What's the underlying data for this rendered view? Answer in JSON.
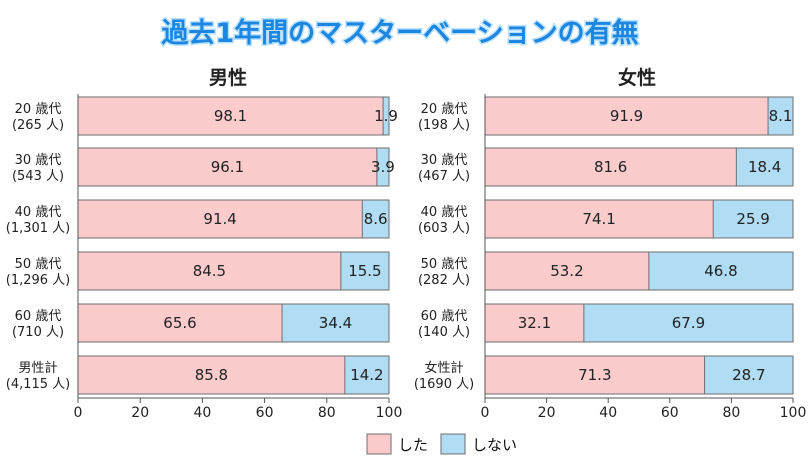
{
  "title": "過去1年間のマスターベーションの有無",
  "legend": {
    "did": "した",
    "did_not": "しない",
    "position": "bottom-center"
  },
  "colors": {
    "did": "#fccccc",
    "did_not": "#b0dcf4",
    "title_fill": "#1d86e0",
    "title_stroke": "#b8e0ff",
    "bar_border": "#6e6e6e"
  },
  "chart_data": [
    {
      "type": "bar",
      "orientation": "horizontal",
      "stacked": true,
      "title": "男性",
      "categories": [
        [
          "20 歳代",
          "(265 人)"
        ],
        [
          "30 歳代",
          "(543 人)"
        ],
        [
          "40 歳代",
          "(1,301 人)"
        ],
        [
          "50 歳代",
          "(1,296 人)"
        ],
        [
          "60 歳代",
          "(710 人)"
        ],
        [
          "男性計",
          "(4,115 人)"
        ]
      ],
      "series": [
        {
          "name": "した",
          "values": [
            98.1,
            96.1,
            91.4,
            84.5,
            65.6,
            85.8
          ],
          "labels": [
            "98.1",
            "96.1",
            "91.4",
            "84.5",
            "65.6",
            "85.8"
          ]
        },
        {
          "name": "しない",
          "values": [
            1.9,
            3.9,
            8.6,
            15.5,
            34.4,
            14.2
          ],
          "labels": [
            "1.9",
            "3.9",
            "8.6",
            "15.5",
            "34.4",
            "14.2"
          ]
        }
      ],
      "xlim": [
        0,
        100
      ],
      "xticks": [
        0,
        20,
        40,
        60,
        80,
        100
      ],
      "grid": false
    },
    {
      "type": "bar",
      "orientation": "horizontal",
      "stacked": true,
      "title": "女性",
      "categories": [
        [
          "20 歳代",
          "(198 人)"
        ],
        [
          "30 歳代",
          "(467 人)"
        ],
        [
          "40 歳代",
          "(603 人)"
        ],
        [
          "50 歳代",
          "(282 人)"
        ],
        [
          "60 歳代",
          "(140 人)"
        ],
        [
          "女性計",
          "(1690 人)"
        ]
      ],
      "series": [
        {
          "name": "した",
          "values": [
            91.9,
            81.6,
            74.1,
            53.2,
            32.1,
            71.3
          ],
          "labels": [
            "91.9",
            "81.6",
            "74.1",
            "53.2",
            "32.1",
            "71.3"
          ]
        },
        {
          "name": "しない",
          "values": [
            8.1,
            18.4,
            25.9,
            46.8,
            67.9,
            28.7
          ],
          "labels": [
            "8.1",
            "18.4",
            "25.9",
            "46.8",
            "67.9",
            "28.7"
          ]
        }
      ],
      "xlim": [
        0,
        100
      ],
      "xticks": [
        0,
        20,
        40,
        60,
        80,
        100
      ],
      "grid": false
    }
  ]
}
